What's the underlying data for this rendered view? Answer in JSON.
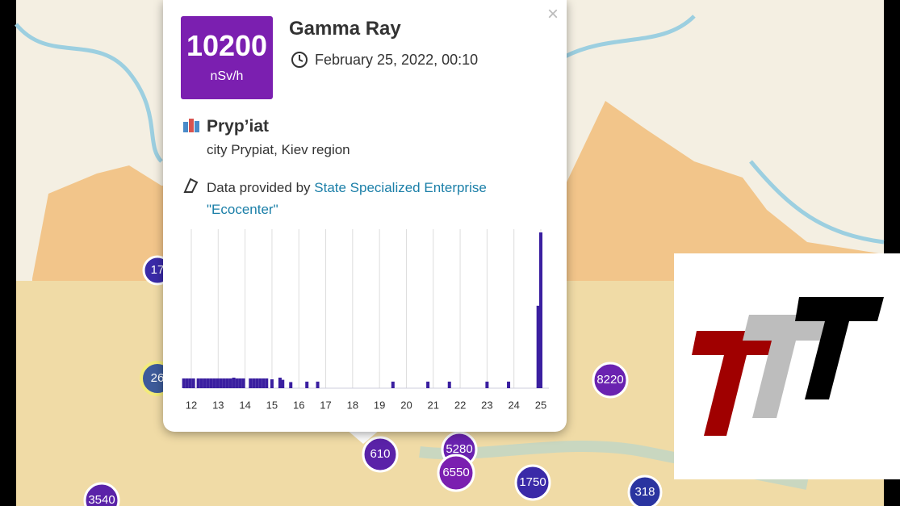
{
  "markers": [
    {
      "label": "17"
    },
    {
      "label": "26"
    },
    {
      "label": "8220"
    },
    {
      "label": "610"
    },
    {
      "label": "5280"
    },
    {
      "label": "6550"
    },
    {
      "label": "1750"
    },
    {
      "label": "318"
    },
    {
      "label": "3540"
    }
  ],
  "popup": {
    "close": "×",
    "reading": {
      "value": "10200",
      "unit": "nSv/h"
    },
    "title": "Gamma Ray",
    "datetime": "February 25, 2022, 00:10",
    "place": {
      "name": "Pryp’iat",
      "address": "city Prypiat, Kiev region"
    },
    "provider": {
      "prefix": "Data provided by",
      "link": "State Specialized Enterprise \"Ecocenter\""
    }
  },
  "chart_data": {
    "type": "bar",
    "x": [
      11.72,
      11.84,
      11.96,
      12.08,
      12.26,
      12.38,
      12.5,
      12.62,
      12.74,
      12.86,
      12.98,
      13.1,
      13.22,
      13.34,
      13.46,
      13.58,
      13.7,
      13.82,
      13.94,
      14.2,
      14.32,
      14.44,
      14.56,
      14.68,
      14.8,
      15.0,
      15.3,
      15.4,
      15.7,
      16.3,
      16.7,
      19.5,
      20.8,
      21.6,
      23.0,
      23.8,
      24.9,
      25.0
    ],
    "values": [
      640,
      640,
      640,
      640,
      640,
      640,
      640,
      640,
      640,
      640,
      640,
      640,
      640,
      640,
      640,
      690,
      640,
      640,
      640,
      640,
      640,
      640,
      640,
      640,
      640,
      580,
      690,
      550,
      400,
      430,
      430,
      430,
      430,
      430,
      430,
      430,
      5400,
      10200
    ],
    "color": "#3a1fa0",
    "xlim": [
      11.7,
      25.3
    ],
    "xticks": [
      12,
      13,
      14,
      15,
      16,
      17,
      18,
      19,
      20,
      21,
      22,
      23,
      24,
      25
    ],
    "grid": true
  }
}
